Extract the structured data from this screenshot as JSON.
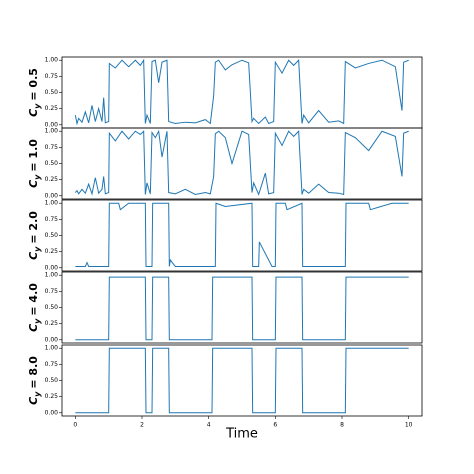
{
  "chart_data": [
    {
      "type": "line",
      "ylabel": [
        "C",
        "y",
        "= 0.5"
      ],
      "color": "#1f77b4",
      "xlim": [
        -0.4,
        10.4
      ],
      "ylim": [
        -0.05,
        1.05
      ],
      "yticks": [
        {
          "value": 0,
          "label": "0.00"
        },
        {
          "value": 0.25,
          "label": "0.25"
        },
        {
          "value": 0.5,
          "label": "0.50"
        },
        {
          "value": 0.75,
          "label": "0.75"
        },
        {
          "value": 1,
          "label": "1.00"
        }
      ],
      "x": [
        0,
        0.05,
        0.1,
        0.2,
        0.3,
        0.4,
        0.5,
        0.6,
        0.7,
        0.8,
        0.85,
        0.9,
        1.0,
        1.02,
        1.2,
        1.4,
        1.6,
        1.8,
        1.95,
        2.05,
        2.1,
        2.15,
        2.25,
        2.3,
        2.4,
        2.5,
        2.6,
        2.75,
        2.8,
        3.0,
        3.3,
        3.6,
        3.9,
        4.05,
        4.15,
        4.2,
        4.3,
        4.5,
        4.7,
        5.0,
        5.2,
        5.3,
        5.35,
        5.5,
        5.7,
        5.8,
        5.95,
        6.0,
        6.2,
        6.4,
        6.55,
        6.7,
        6.8,
        6.85,
        7.0,
        7.3,
        7.6,
        7.9,
        8.05,
        8.1,
        8.4,
        8.8,
        9.2,
        9.6,
        9.8,
        9.85,
        10.0
      ],
      "values": [
        0.15,
        0.02,
        0.1,
        0.04,
        0.2,
        0.03,
        0.3,
        0.05,
        0.25,
        0.05,
        0.42,
        0.03,
        0.05,
        0.95,
        0.88,
        1.0,
        0.9,
        1.0,
        0.92,
        1.0,
        0.02,
        0.15,
        0.02,
        0.98,
        1.0,
        0.65,
        0.97,
        1.0,
        0.05,
        0.02,
        0.04,
        0.03,
        0.08,
        0.02,
        0.45,
        0.97,
        1.0,
        0.85,
        0.93,
        1.0,
        0.96,
        0.05,
        0.1,
        0.02,
        0.12,
        0.02,
        0.05,
        0.97,
        0.8,
        1.0,
        0.92,
        1.0,
        0.02,
        0.15,
        0.03,
        0.22,
        0.04,
        0.06,
        0.02,
        0.98,
        0.88,
        0.95,
        1.0,
        0.9,
        0.22,
        0.97,
        1.0
      ]
    },
    {
      "type": "line",
      "ylabel": [
        "C",
        "y",
        "= 1.0"
      ],
      "color": "#1f77b4",
      "xlim": [
        -0.4,
        10.4
      ],
      "ylim": [
        -0.05,
        1.05
      ],
      "yticks": [
        {
          "value": 0,
          "label": "0.00"
        },
        {
          "value": 0.25,
          "label": "0.25"
        },
        {
          "value": 0.5,
          "label": "0.50"
        },
        {
          "value": 0.75,
          "label": "0.75"
        },
        {
          "value": 1,
          "label": "1.00"
        }
      ],
      "x": [
        0,
        0.05,
        0.1,
        0.2,
        0.3,
        0.4,
        0.5,
        0.6,
        0.7,
        0.8,
        0.85,
        0.9,
        1.0,
        1.02,
        1.2,
        1.4,
        1.6,
        1.8,
        1.95,
        2.05,
        2.1,
        2.15,
        2.25,
        2.3,
        2.4,
        2.5,
        2.6,
        2.75,
        2.8,
        3.0,
        3.3,
        3.6,
        3.9,
        4.05,
        4.15,
        4.2,
        4.3,
        4.5,
        4.7,
        5.0,
        5.2,
        5.3,
        5.35,
        5.5,
        5.7,
        5.8,
        5.95,
        6.0,
        6.2,
        6.4,
        6.55,
        6.7,
        6.8,
        6.85,
        7.0,
        7.3,
        7.6,
        7.9,
        8.05,
        8.1,
        8.4,
        8.8,
        9.2,
        9.6,
        9.8,
        9.85,
        10.0
      ],
      "values": [
        0.05,
        0.08,
        0.03,
        0.1,
        0.04,
        0.18,
        0.03,
        0.28,
        0.04,
        0.1,
        0.3,
        0.03,
        0.05,
        0.97,
        0.85,
        1.0,
        0.88,
        1.0,
        0.95,
        1.0,
        0.02,
        0.2,
        0.03,
        0.98,
        0.9,
        1.0,
        0.6,
        1.0,
        0.05,
        0.03,
        0.1,
        0.02,
        0.05,
        0.03,
        0.3,
        0.96,
        1.0,
        0.9,
        0.5,
        1.0,
        0.95,
        0.05,
        0.2,
        0.02,
        0.35,
        0.03,
        0.05,
        0.97,
        0.78,
        1.0,
        0.92,
        1.0,
        0.02,
        0.1,
        0.04,
        0.18,
        0.05,
        0.04,
        0.02,
        0.98,
        0.9,
        0.7,
        1.0,
        0.92,
        0.3,
        0.97,
        1.0
      ]
    },
    {
      "type": "line",
      "ylabel": [
        "C",
        "y",
        "= 2.0"
      ],
      "color": "#1f77b4",
      "xlim": [
        -0.4,
        10.4
      ],
      "ylim": [
        -0.05,
        1.05
      ],
      "yticks": [
        {
          "value": 0,
          "label": "0.00"
        },
        {
          "value": 0.25,
          "label": "0.25"
        },
        {
          "value": 0.5,
          "label": "0.50"
        },
        {
          "value": 0.75,
          "label": "0.75"
        },
        {
          "value": 1,
          "label": "1.00"
        }
      ],
      "x": [
        0,
        0.3,
        0.35,
        0.4,
        1.0,
        1.02,
        1.3,
        1.35,
        1.6,
        2.1,
        2.12,
        2.3,
        2.32,
        2.8,
        2.82,
        2.85,
        3.0,
        4.1,
        4.2,
        4.22,
        4.5,
        5.3,
        5.32,
        5.5,
        5.52,
        5.9,
        6.0,
        6.02,
        6.3,
        6.35,
        6.8,
        6.82,
        8.1,
        8.12,
        8.8,
        8.85,
        9.5,
        10.0
      ],
      "values": [
        0.02,
        0.02,
        0.08,
        0.02,
        0.02,
        1.0,
        1.0,
        0.9,
        1.0,
        1.0,
        0.02,
        0.02,
        1.0,
        1.0,
        0.02,
        0.12,
        0.02,
        0.02,
        0.02,
        1.0,
        0.95,
        1.0,
        0.02,
        0.02,
        0.4,
        0.02,
        0.02,
        1.0,
        1.0,
        0.9,
        1.0,
        0.02,
        0.02,
        1.0,
        1.0,
        0.9,
        1.0,
        1.0
      ]
    },
    {
      "type": "line",
      "ylabel": [
        "C",
        "y",
        "= 4.0"
      ],
      "color": "#1f77b4",
      "xlim": [
        -0.4,
        10.4
      ],
      "ylim": [
        -0.05,
        1.05
      ],
      "yticks": [
        {
          "value": 0,
          "label": "0.00"
        },
        {
          "value": 0.25,
          "label": "0.25"
        },
        {
          "value": 0.5,
          "label": "0.50"
        },
        {
          "value": 0.75,
          "label": "0.75"
        },
        {
          "value": 1,
          "label": "1.00"
        }
      ],
      "x": [
        0,
        1.0,
        1.02,
        2.1,
        2.12,
        2.3,
        2.32,
        2.8,
        2.82,
        4.1,
        4.12,
        5.3,
        5.32,
        6.0,
        6.02,
        6.8,
        6.82,
        8.1,
        8.12,
        10.0
      ],
      "values": [
        0,
        0,
        0.97,
        0.97,
        0,
        0,
        0.97,
        0.97,
        0,
        0,
        0.97,
        0.97,
        0,
        0,
        0.97,
        0.97,
        0,
        0,
        0.97,
        0.97
      ]
    },
    {
      "type": "line",
      "ylabel": [
        "C",
        "y",
        "= 8.0"
      ],
      "color": "#1f77b4",
      "xlim": [
        -0.4,
        10.4
      ],
      "ylim": [
        -0.05,
        1.05
      ],
      "yticks": [
        {
          "value": 0,
          "label": "0.00"
        },
        {
          "value": 0.25,
          "label": "0.25"
        },
        {
          "value": 0.5,
          "label": "0.50"
        },
        {
          "value": 0.75,
          "label": "0.75"
        },
        {
          "value": 1,
          "label": "1.00"
        }
      ],
      "x": [
        0,
        1.0,
        1.02,
        2.1,
        2.12,
        2.3,
        2.32,
        2.8,
        2.82,
        4.1,
        4.12,
        5.3,
        5.32,
        6.0,
        6.02,
        6.8,
        6.82,
        8.1,
        8.12,
        10.0
      ],
      "values": [
        0,
        0,
        1,
        1,
        0,
        0,
        1,
        1,
        0,
        0,
        1,
        1,
        0,
        0,
        1,
        1,
        0,
        0,
        1,
        1
      ],
      "xticks": [
        0,
        2,
        4,
        6,
        8,
        10
      ],
      "xlabel": "Time"
    }
  ]
}
